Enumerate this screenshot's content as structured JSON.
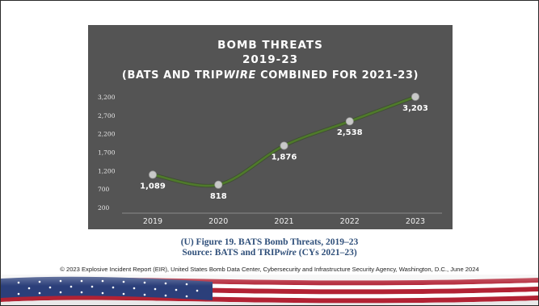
{
  "chart_data": {
    "type": "line",
    "title_lines": [
      "BOMB THREATS",
      "2019-23",
      "(BATS AND TRIPWIRE COMBINED FOR 2021-23)"
    ],
    "title_line3_parts": [
      "(BATS AND TRIP",
      "WIRE",
      " COMBINED FOR 2021-23)"
    ],
    "categories": [
      "2019",
      "2020",
      "2021",
      "2022",
      "2023"
    ],
    "values": [
      1089,
      818,
      1876,
      2538,
      3203
    ],
    "data_labels": [
      "1,089",
      "818",
      "1,876",
      "2,538",
      "3,203"
    ],
    "y_ticks": [
      200,
      700,
      1200,
      1700,
      2200,
      2700,
      3200
    ],
    "y_tick_labels": [
      "200",
      "700",
      "1,200",
      "1,700",
      "2,200",
      "2,700",
      "3,200"
    ],
    "ylim": [
      200,
      3200
    ],
    "series_color": "#4f7a2b",
    "marker_color": "#c8c8c8",
    "grid": false,
    "legend": "none"
  },
  "caption": {
    "line1": "(U) Figure 19. BATS Bomb Threats, 2019–23",
    "line2_parts": [
      "Source: BATS and TRIP",
      "wire",
      " (CYs 2021–23)"
    ]
  },
  "footer": {
    "copyright": "© 2023 Explosive Incident Report (EIR), United States Bomb Data Center, Cybersecurity and Infrastructure Security Agency, Washington, D.C., June 2024"
  },
  "colors": {
    "chart_background": "#545454",
    "caption_text": "#2f4f7a"
  }
}
